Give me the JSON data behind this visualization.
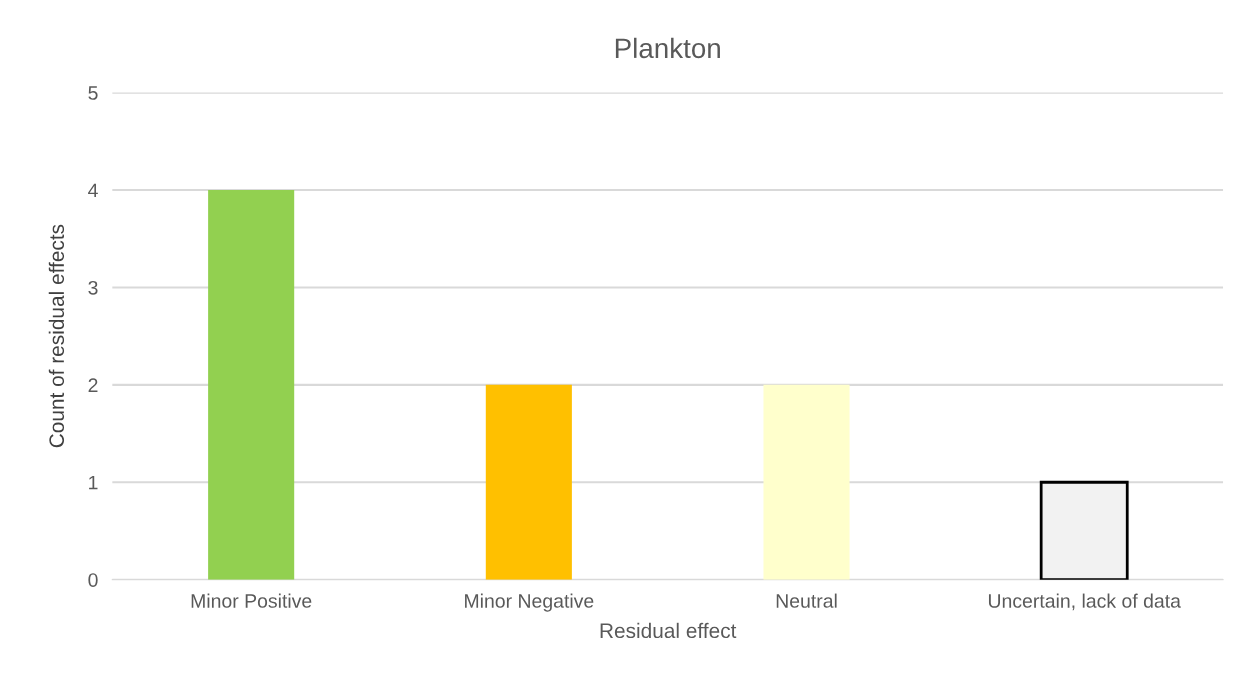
{
  "chart_data": {
    "type": "bar",
    "title": "Plankton",
    "xlabel": "Residual effect",
    "ylabel": "Count of residual effects",
    "categories": [
      "Minor Positive",
      "Minor Negative",
      "Neutral",
      "Uncertain, lack of data"
    ],
    "values": [
      4,
      2,
      2,
      1
    ],
    "colors": [
      "#92d050",
      "#ffc000",
      "#ffffcc",
      "#f2f2f2"
    ],
    "ylim": [
      0,
      5
    ],
    "yticks": [
      0,
      1,
      2,
      3,
      4,
      5
    ],
    "grid": "y",
    "legend": false
  }
}
